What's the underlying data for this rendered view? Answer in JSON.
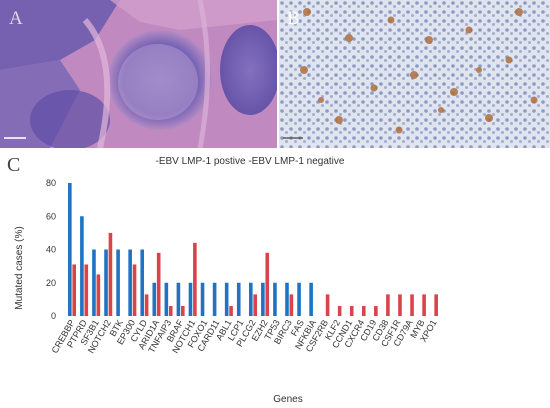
{
  "panels": {
    "a_label": "A",
    "b_label": "B",
    "c_label": "C"
  },
  "colors": {
    "positive": "#1f73c2",
    "negative": "#d9434b",
    "he_background": "#b57ab8",
    "ihc_background": "#dfe4ee"
  },
  "chart_data": {
    "type": "bar",
    "legend": [
      "EBV LMP-1 postive",
      "EBV LMP-1 negative"
    ],
    "legend_text": "-EBV LMP-1 postive -EBV LMP-1 negative",
    "legend_position": "top-center",
    "xlabel": "Genes",
    "ylabel": "Mutated cases (%)",
    "ylim": [
      0,
      80
    ],
    "yticks": [
      0,
      20,
      40,
      60,
      80
    ],
    "grid": false,
    "categories": [
      "CREBBP",
      "PTPRD",
      "SF3B1",
      "NOTCH2",
      "BTK",
      "EP300",
      "CYLD",
      "ARID1A",
      "TNFAIP3",
      "BRAF",
      "NOTCH1",
      "FOXO1",
      "CARD11",
      "ABL1",
      "LCP1",
      "PLCG2",
      "EZH2",
      "TP53",
      "BIRC3",
      "FAS",
      "NFKBIA",
      "CSF2RB",
      "KLF2",
      "CCND1",
      "CXCR4",
      "CD19",
      "CD38",
      "CSF1R",
      "CD79A",
      "MYB",
      "XPO1"
    ],
    "series": [
      {
        "name": "EBV LMP-1 postive",
        "values": [
          80,
          60,
          40,
          40,
          40,
          40,
          40,
          20,
          20,
          20,
          20,
          20,
          20,
          20,
          20,
          20,
          20,
          20,
          20,
          20,
          20,
          0,
          0,
          0,
          0,
          0,
          0,
          0,
          0,
          0,
          0
        ]
      },
      {
        "name": "EBV LMP-1 negative",
        "values": [
          31,
          31,
          25,
          50,
          0,
          31,
          13,
          38,
          6,
          6,
          44,
          0,
          0,
          6,
          0,
          13,
          38,
          0,
          13,
          0,
          0,
          13,
          6,
          6,
          6,
          6,
          13,
          13,
          13,
          13,
          13
        ]
      }
    ]
  }
}
